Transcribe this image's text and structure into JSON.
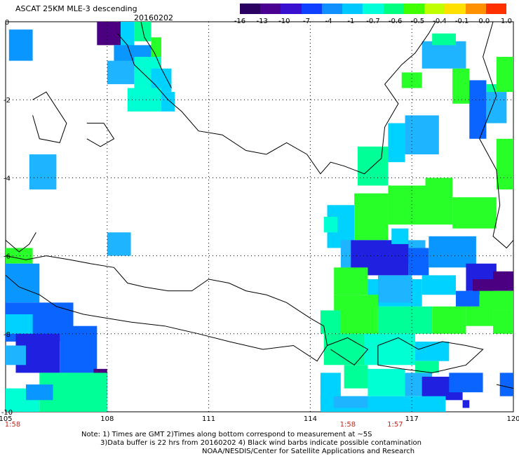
{
  "header": {
    "title": "ASCAT 25KM MLE-3 descending",
    "date": "20160202"
  },
  "colorbar": {
    "labels": [
      "-16",
      "-13",
      "-10",
      "-7",
      "-4",
      "-1",
      "-0.7",
      "-0.6",
      "-0.5",
      "-0.4",
      "-0.1",
      "0.0",
      "1.0"
    ],
    "colors": [
      "#2a0060",
      "#4a0090",
      "#3a10d0",
      "#1040ff",
      "#1090ff",
      "#00c8ff",
      "#00ffd8",
      "#00ff80",
      "#40ff00",
      "#c0ff00",
      "#ffe000",
      "#ff9000",
      "#ff3000"
    ]
  },
  "chart_data": {
    "type": "heatmap",
    "title": "ASCAT 25KM MLE-3 descending",
    "subtitle": "20160202",
    "xlabel": "",
    "ylabel": "",
    "xlim": [
      105,
      120
    ],
    "ylim": [
      -10,
      0
    ],
    "x_ticks": [
      "105",
      "108",
      "111",
      "114",
      "117",
      "120"
    ],
    "y_ticks": [
      "0",
      "-2",
      "-4",
      "-6",
      "-8",
      "-10"
    ],
    "grid": true,
    "pass_times": [
      {
        "lon": 105,
        "label": "1:58"
      },
      {
        "lon": 114.9,
        "label": "1:58"
      },
      {
        "lon": 116.3,
        "label": "1:57"
      }
    ],
    "colors": {
      "dark": "#4a0080",
      "deep_blue": "#2020e0",
      "blue": "#0a64ff",
      "mid_blue": "#0a96ff",
      "light_blue": "#1eb4ff",
      "cyan": "#00d2ff",
      "aqua": "#00ffd2",
      "green_aqua": "#00ff96",
      "green": "#28ff28"
    },
    "cells": [
      [
        105.1,
        105.8,
        -0.2,
        -1.0,
        "mid_blue"
      ],
      [
        107.7,
        108.4,
        0.0,
        -0.6,
        "dark"
      ],
      [
        108.4,
        108.8,
        0.0,
        -0.7,
        "cyan"
      ],
      [
        108.8,
        109.3,
        0.0,
        -0.5,
        "green_aqua"
      ],
      [
        109.3,
        109.6,
        -0.4,
        -0.9,
        "green"
      ],
      [
        108.2,
        109.3,
        -0.6,
        -1.2,
        "mid_blue"
      ],
      [
        108.8,
        109.6,
        -0.9,
        -1.7,
        "aqua"
      ],
      [
        109.3,
        109.9,
        -1.2,
        -1.8,
        "cyan"
      ],
      [
        108.6,
        109.6,
        -1.7,
        -2.3,
        "aqua"
      ],
      [
        109.6,
        110.0,
        -1.8,
        -2.3,
        "cyan"
      ],
      [
        108.0,
        108.8,
        -1.0,
        -1.6,
        "light_blue"
      ],
      [
        105.7,
        106.5,
        -3.4,
        -4.3,
        "light_blue"
      ],
      [
        108.0,
        108.7,
        -5.4,
        -6.0,
        "light_blue"
      ],
      [
        105.0,
        105.8,
        -5.8,
        -6.2,
        "green"
      ],
      [
        105.0,
        106.0,
        -6.2,
        -7.2,
        "mid_blue"
      ],
      [
        105.0,
        107.0,
        -7.2,
        -8.2,
        "blue"
      ],
      [
        105.0,
        105.8,
        -7.5,
        -8.0,
        "cyan"
      ],
      [
        105.3,
        106.6,
        -8.0,
        -9.0,
        "deep_blue"
      ],
      [
        106.6,
        107.7,
        -7.8,
        -9.0,
        "blue"
      ],
      [
        105.0,
        105.6,
        -8.3,
        -8.8,
        "light_blue"
      ],
      [
        107.6,
        108.0,
        -8.9,
        -9.6,
        "dark"
      ],
      [
        105.0,
        106.0,
        -9.4,
        -10.0,
        "aqua"
      ],
      [
        106.0,
        108.0,
        -9.0,
        -10.0,
        "green_aqua"
      ],
      [
        105.6,
        106.4,
        -9.3,
        -9.7,
        "mid_blue"
      ],
      [
        114.5,
        115.3,
        -4.7,
        -5.8,
        "cyan"
      ],
      [
        115.3,
        116.3,
        -4.4,
        -5.6,
        "green"
      ],
      [
        116.3,
        117.4,
        -4.2,
        -5.2,
        "green"
      ],
      [
        117.4,
        118.2,
        -4.0,
        -5.2,
        "green"
      ],
      [
        118.2,
        119.5,
        -4.5,
        -5.3,
        "green"
      ],
      [
        115.4,
        116.3,
        -3.2,
        -4.2,
        "green_aqua"
      ],
      [
        116.3,
        116.8,
        -2.6,
        -3.6,
        "cyan"
      ],
      [
        116.8,
        117.8,
        -2.4,
        -3.4,
        "light_blue"
      ],
      [
        118.2,
        118.7,
        -1.2,
        -2.1,
        "green"
      ],
      [
        116.7,
        117.3,
        -1.3,
        -1.7,
        "green"
      ],
      [
        117.3,
        118.6,
        -0.5,
        -1.2,
        "light_blue"
      ],
      [
        117.6,
        118.3,
        -0.3,
        -0.6,
        "green_aqua"
      ],
      [
        118.7,
        119.2,
        -1.5,
        -3.0,
        "blue"
      ],
      [
        119.2,
        119.5,
        -1.6,
        -2.6,
        "green_aqua"
      ],
      [
        119.5,
        120.0,
        -0.9,
        -1.8,
        "green"
      ],
      [
        119.2,
        119.8,
        -1.8,
        -2.6,
        "light_blue"
      ],
      [
        119.5,
        120.0,
        -3.0,
        -4.3,
        "green"
      ],
      [
        114.9,
        115.9,
        -5.6,
        -6.4,
        "light_blue"
      ],
      [
        115.9,
        117.4,
        -5.6,
        -6.2,
        "light_blue"
      ],
      [
        115.2,
        116.9,
        -5.6,
        -6.5,
        "deep_blue"
      ],
      [
        116.9,
        117.5,
        -5.8,
        -6.5,
        "blue"
      ],
      [
        117.5,
        118.9,
        -5.5,
        -6.3,
        "mid_blue"
      ],
      [
        118.6,
        119.5,
        -6.2,
        -6.9,
        "deep_blue"
      ],
      [
        118.8,
        119.4,
        -6.6,
        -7.0,
        "dark"
      ],
      [
        119.4,
        120.0,
        -6.4,
        -6.9,
        "dark"
      ],
      [
        114.7,
        115.7,
        -6.3,
        -7.0,
        "green"
      ],
      [
        115.7,
        117.3,
        -6.6,
        -7.3,
        "cyan"
      ],
      [
        117.3,
        118.3,
        -6.5,
        -7.0,
        "cyan"
      ],
      [
        116.0,
        117.0,
        -6.5,
        -7.2,
        "light_blue"
      ],
      [
        118.3,
        119.0,
        -6.9,
        -7.3,
        "blue"
      ],
      [
        119.0,
        120.0,
        -6.9,
        -7.4,
        "green"
      ],
      [
        114.7,
        116.0,
        -7.0,
        -8.0,
        "green"
      ],
      [
        116.0,
        117.6,
        -7.3,
        -8.0,
        "green_aqua"
      ],
      [
        117.6,
        118.6,
        -7.3,
        -8.0,
        "green"
      ],
      [
        118.6,
        119.4,
        -7.3,
        -7.8,
        "green"
      ],
      [
        119.4,
        120.0,
        -7.4,
        -8.0,
        "green"
      ],
      [
        114.4,
        115.6,
        -8.0,
        -8.8,
        "green_aqua"
      ],
      [
        115.6,
        117.1,
        -8.0,
        -8.8,
        "aqua"
      ],
      [
        117.1,
        118.1,
        -8.2,
        -8.7,
        "cyan"
      ],
      [
        117.1,
        117.8,
        -8.7,
        -9.0,
        "green_aqua"
      ],
      [
        114.3,
        114.9,
        -9.0,
        -9.8,
        "cyan"
      ],
      [
        115.0,
        115.7,
        -8.8,
        -9.4,
        "green_aqua"
      ],
      [
        115.7,
        116.8,
        -8.9,
        -9.6,
        "aqua"
      ],
      [
        116.8,
        117.6,
        -9.0,
        -9.6,
        "light_blue"
      ],
      [
        117.3,
        118.5,
        -9.1,
        -9.7,
        "deep_blue"
      ],
      [
        118.1,
        119.1,
        -9.0,
        -9.5,
        "blue"
      ],
      [
        114.3,
        118.0,
        -9.6,
        -10.0,
        "cyan"
      ],
      [
        114.7,
        115.7,
        -9.6,
        -9.9,
        "light_blue"
      ],
      [
        118.5,
        118.7,
        -9.7,
        -9.9,
        "deep_blue"
      ],
      [
        119.6,
        120.0,
        -9.0,
        -9.6,
        "blue"
      ],
      [
        114.3,
        114.9,
        -7.4,
        -8.0,
        "green_aqua"
      ],
      [
        116.4,
        116.9,
        -5.3,
        -5.7,
        "cyan"
      ],
      [
        114.4,
        114.8,
        -5.0,
        -5.4,
        "aqua"
      ]
    ]
  },
  "notes": {
    "line1": "Note: 1) Times are GMT 2)Times along bottom correspond to measurement at ~5S",
    "line2": "3)Data buffer is 22 hrs from 20160202 4) Black wind barbs indicate possible contamination",
    "line3": "NOAA/NESDIS/Center for Satellite Applications and Research"
  }
}
